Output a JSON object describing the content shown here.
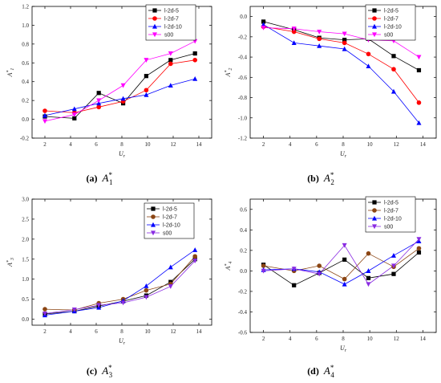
{
  "chart_data": [
    {
      "type": "line",
      "caption": {
        "letter": "(a)",
        "symbol": "A",
        "sup": "*",
        "sub": "1"
      },
      "ylabel": {
        "base": "A",
        "sup": "*",
        "sub": "1"
      },
      "xlabel": {
        "base": "U",
        "sub": "r"
      },
      "xlim": [
        1,
        15
      ],
      "ylim": [
        -0.2,
        1.2
      ],
      "xticks": [
        2,
        4,
        6,
        8,
        10,
        12,
        14
      ],
      "yticks": [
        -0.2,
        0.0,
        0.2,
        0.4,
        0.6,
        0.8,
        1.0,
        1.2
      ],
      "ytick_labels": [
        "-0.2",
        "0.0",
        "0.2",
        "0.4",
        "0.6",
        "0.8",
        "1.0",
        "1.2"
      ],
      "x": [
        2.0,
        4.3,
        6.2,
        8.1,
        9.9,
        11.8,
        13.7
      ],
      "legend_position": "top-right",
      "series": [
        {
          "name": "l-2d-5",
          "color": "#000000",
          "marker": "square",
          "values": [
            0.03,
            0.01,
            0.28,
            0.17,
            0.46,
            0.63,
            0.7
          ]
        },
        {
          "name": "l-2d-7",
          "color": "#ff0000",
          "marker": "circle",
          "values": [
            0.09,
            0.07,
            0.13,
            0.19,
            0.31,
            0.59,
            0.63
          ]
        },
        {
          "name": "l-2d-10",
          "color": "#0000ff",
          "marker": "triangle-up",
          "values": [
            0.04,
            0.11,
            0.17,
            0.22,
            0.26,
            0.36,
            0.43
          ]
        },
        {
          "name": "s00",
          "color": "#ff00ff",
          "marker": "triangle-down",
          "values": [
            -0.02,
            0.05,
            0.2,
            0.36,
            0.63,
            0.7,
            0.83
          ]
        }
      ]
    },
    {
      "type": "line",
      "caption": {
        "letter": "(b)",
        "symbol": "A",
        "sup": "*",
        "sub": "2"
      },
      "ylabel": {
        "base": "A",
        "sup": "*",
        "sub": "2"
      },
      "xlabel": {
        "base": "U",
        "sub": "r"
      },
      "xlim": [
        1,
        15
      ],
      "ylim": [
        -1.2,
        0.1
      ],
      "xticks": [
        2,
        4,
        6,
        8,
        10,
        12,
        14
      ],
      "yticks": [
        -1.2,
        -1.0,
        -0.8,
        -0.6,
        -0.4,
        -0.2,
        0.0
      ],
      "ytick_labels": [
        "-1.2",
        "-1.0",
        "-0.8",
        "-0.6",
        "-0.4",
        "-0.2",
        "0.0"
      ],
      "x": [
        2.0,
        4.3,
        6.2,
        8.1,
        9.9,
        11.8,
        13.7
      ],
      "legend_position": "top-right",
      "series": [
        {
          "name": "l-2d-5",
          "color": "#000000",
          "marker": "square",
          "values": [
            -0.05,
            -0.13,
            -0.21,
            -0.23,
            -0.22,
            -0.39,
            -0.53
          ]
        },
        {
          "name": "l-2d-7",
          "color": "#ff0000",
          "marker": "circle",
          "values": [
            -0.1,
            -0.15,
            -0.22,
            -0.26,
            -0.37,
            -0.52,
            -0.85
          ]
        },
        {
          "name": "l-2d-10",
          "color": "#0000ff",
          "marker": "triangle-up",
          "values": [
            -0.08,
            -0.26,
            -0.29,
            -0.32,
            -0.49,
            -0.74,
            -1.05
          ]
        },
        {
          "name": "s00",
          "color": "#ff00ff",
          "marker": "triangle-down",
          "values": [
            -0.11,
            -0.12,
            -0.15,
            -0.17,
            -0.23,
            -0.24,
            -0.4
          ]
        }
      ]
    },
    {
      "type": "line",
      "caption": {
        "letter": "(c)",
        "symbol": "A",
        "sup": "*",
        "sub": "3"
      },
      "ylabel": {
        "base": "A",
        "sup": "*",
        "sub": "3"
      },
      "xlabel": {
        "base": "U",
        "sub": "r"
      },
      "xlim": [
        1,
        15
      ],
      "ylim": [
        -0.15,
        3.0
      ],
      "xticks": [
        2,
        4,
        6,
        8,
        10,
        12,
        14
      ],
      "yticks": [
        0.0,
        0.5,
        1.0,
        1.5,
        2.0,
        2.5,
        3.0
      ],
      "ytick_labels": [
        "0.0",
        "0.5",
        "1.0",
        "1.5",
        "2.0",
        "2.5",
        "3.0"
      ],
      "x": [
        2.0,
        4.3,
        6.2,
        8.1,
        9.9,
        11.8,
        13.7
      ],
      "legend_position": "top-left",
      "series": [
        {
          "name": "l-2d-5",
          "color": "#000000",
          "marker": "square",
          "values": [
            0.13,
            0.2,
            0.33,
            0.45,
            0.59,
            0.93,
            1.5
          ]
        },
        {
          "name": "l-2d-7",
          "color": "#8b4513",
          "marker": "circle",
          "values": [
            0.25,
            0.23,
            0.4,
            0.5,
            0.72,
            0.88,
            1.57
          ]
        },
        {
          "name": "l-2d-10",
          "color": "#0000ff",
          "marker": "triangle-up",
          "values": [
            0.1,
            0.2,
            0.29,
            0.46,
            0.83,
            1.3,
            1.73
          ]
        },
        {
          "name": "s00",
          "color": "#8a2be2",
          "marker": "triangle-down",
          "values": [
            0.14,
            0.24,
            0.35,
            0.41,
            0.55,
            0.82,
            1.46
          ]
        }
      ]
    },
    {
      "type": "line",
      "caption": {
        "letter": "(d)",
        "symbol": "A",
        "sup": "*",
        "sub": "4"
      },
      "ylabel": {
        "base": "A",
        "sup": "*",
        "sub": "4"
      },
      "xlabel": {
        "base": "U",
        "sub": "r"
      },
      "xlim": [
        1,
        15
      ],
      "ylim": [
        -0.6,
        0.7
      ],
      "xticks": [
        2,
        4,
        6,
        8,
        10,
        12,
        14
      ],
      "yticks": [
        -0.6,
        -0.4,
        -0.2,
        0.0,
        0.2,
        0.4,
        0.6
      ],
      "ytick_labels": [
        "-0.6",
        "-0.4",
        "-0.2",
        "0.0",
        "0.2",
        "0.4",
        "0.6"
      ],
      "x": [
        2.0,
        4.3,
        6.2,
        8.1,
        9.9,
        11.8,
        13.7
      ],
      "legend_position": "top-left",
      "series": [
        {
          "name": "l-2d-5",
          "color": "#000000",
          "marker": "square",
          "values": [
            0.06,
            -0.14,
            -0.02,
            0.11,
            -0.07,
            -0.03,
            0.18
          ]
        },
        {
          "name": "l-2d-7",
          "color": "#8b4513",
          "marker": "circle",
          "values": [
            0.05,
            0.0,
            0.05,
            -0.08,
            0.17,
            0.04,
            0.22
          ]
        },
        {
          "name": "l-2d-10",
          "color": "#0000ff",
          "marker": "triangle-up",
          "values": [
            0.01,
            0.02,
            -0.01,
            -0.13,
            0.0,
            0.15,
            0.29
          ]
        },
        {
          "name": "s00",
          "color": "#8a2be2",
          "marker": "triangle-down",
          "values": [
            0.0,
            0.02,
            -0.03,
            0.25,
            -0.13,
            0.05,
            0.31
          ]
        }
      ]
    }
  ]
}
